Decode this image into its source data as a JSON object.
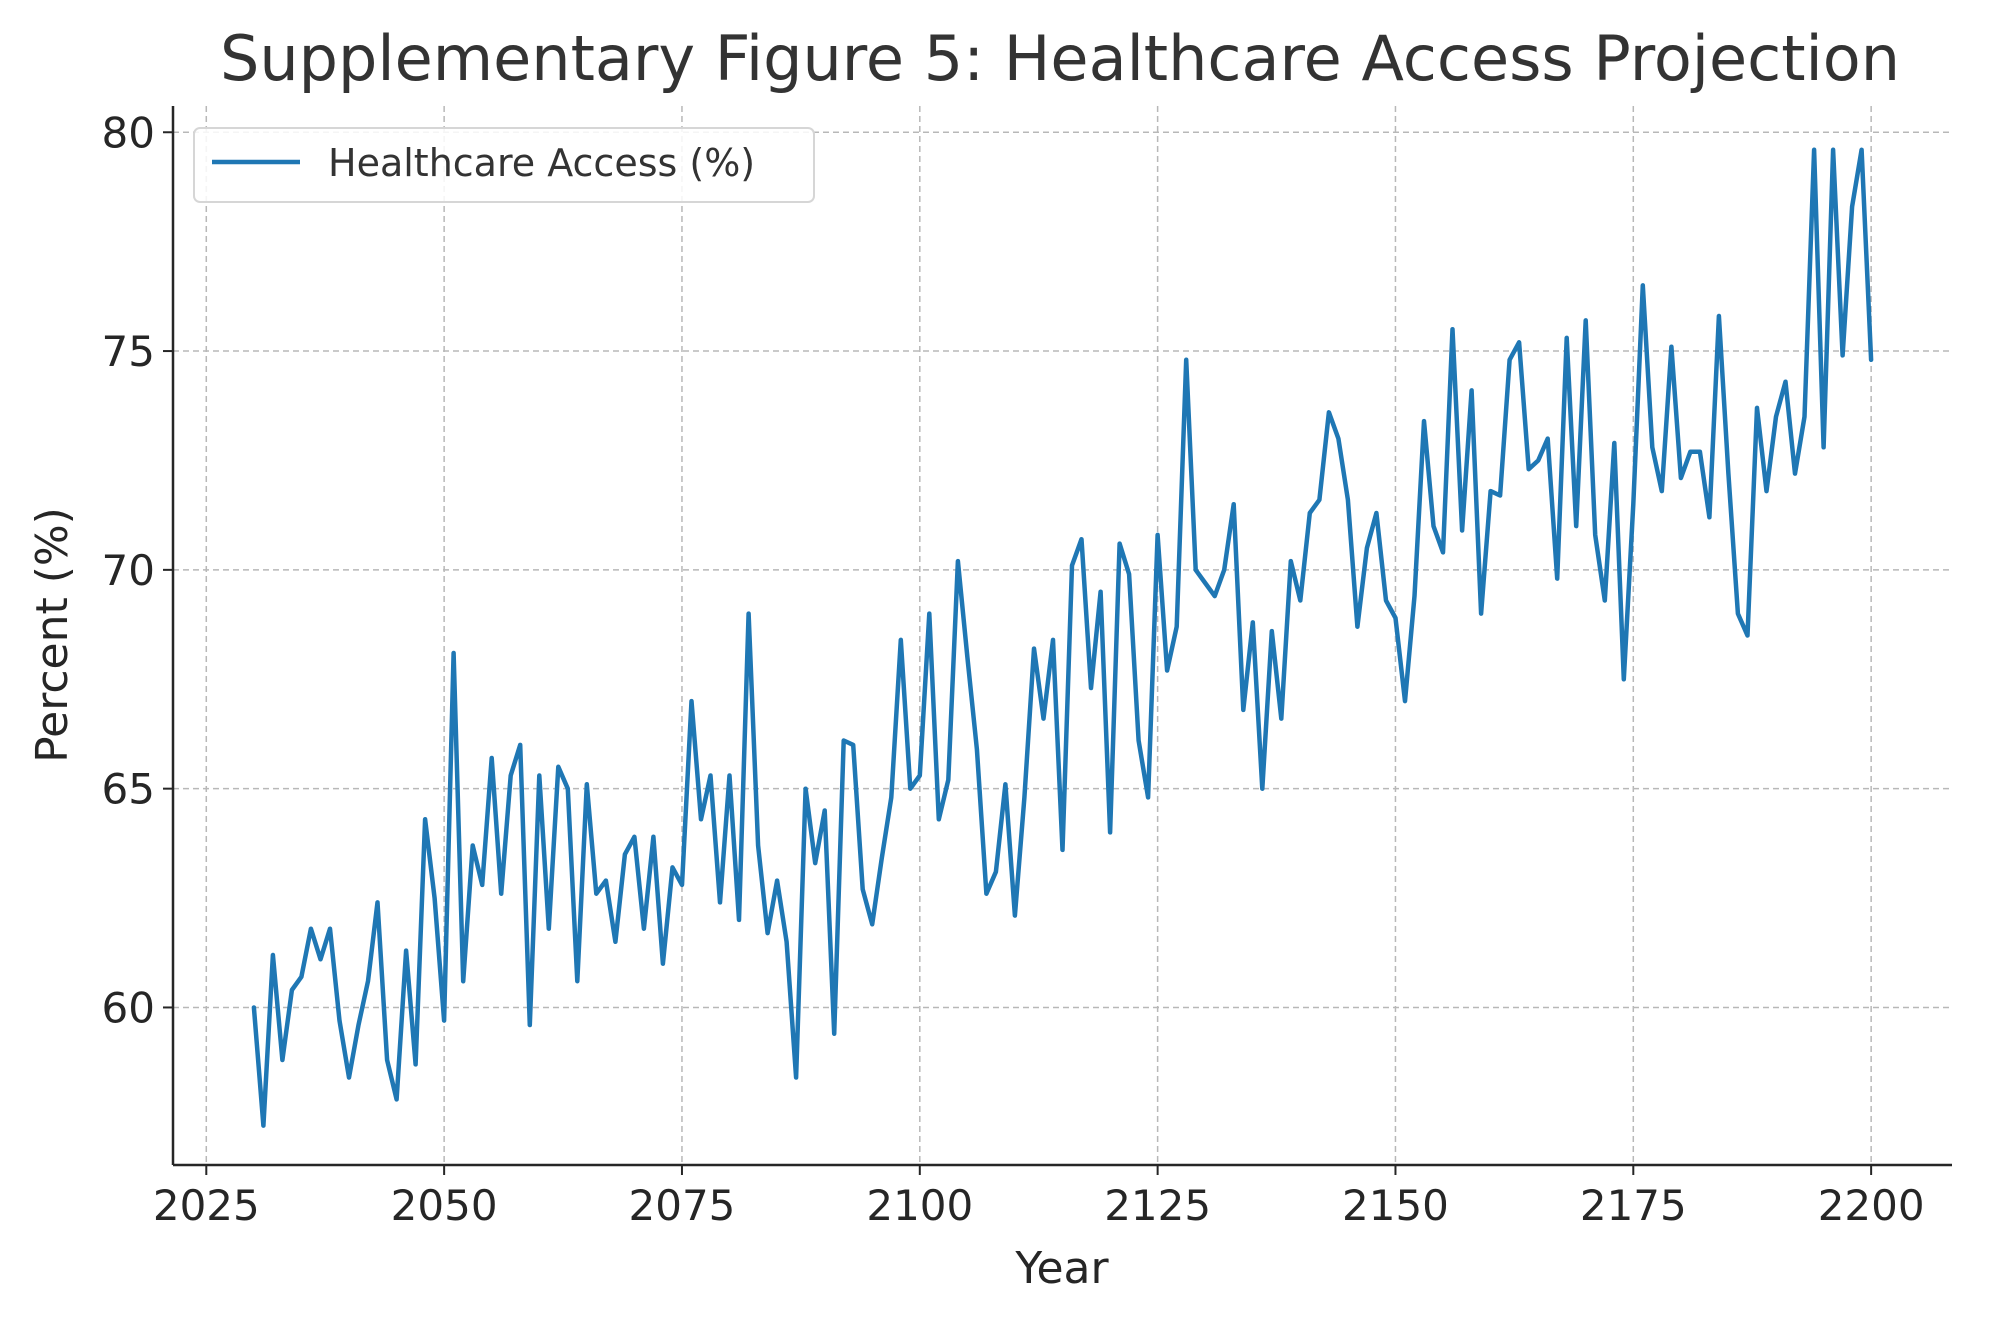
{
  "chart_data": {
    "type": "line",
    "title": "Supplementary Figure 5: Healthcare Access Projection",
    "xlabel": "Year",
    "ylabel": "Percent (%)",
    "xlim": [
      2021.5,
      2208.5
    ],
    "ylim": [
      56.4,
      80.6
    ],
    "xticks": [
      2025,
      2050,
      2075,
      2100,
      2125,
      2150,
      2175,
      2200
    ],
    "yticks": [
      60,
      65,
      70,
      75,
      80
    ],
    "grid": true,
    "legend_position": "top-left",
    "series_color": "#1f77b4",
    "series": [
      {
        "name": "Healthcare Access (%)",
        "x": [
          2030,
          2031,
          2032,
          2033,
          2034,
          2035,
          2036,
          2037,
          2038,
          2039,
          2040,
          2041,
          2042,
          2043,
          2044,
          2045,
          2046,
          2047,
          2048,
          2049,
          2050,
          2051,
          2052,
          2053,
          2054,
          2055,
          2056,
          2057,
          2058,
          2059,
          2060,
          2061,
          2062,
          2063,
          2064,
          2065,
          2066,
          2067,
          2068,
          2069,
          2070,
          2071,
          2072,
          2073,
          2074,
          2075,
          2076,
          2077,
          2078,
          2079,
          2080,
          2081,
          2082,
          2083,
          2084,
          2085,
          2086,
          2087,
          2088,
          2089,
          2090,
          2091,
          2092,
          2093,
          2094,
          2095,
          2096,
          2097,
          2098,
          2099,
          2100,
          2101,
          2102,
          2103,
          2104,
          2105,
          2106,
          2107,
          2108,
          2109,
          2110,
          2111,
          2112,
          2113,
          2114,
          2115,
          2116,
          2117,
          2118,
          2119,
          2120,
          2121,
          2122,
          2123,
          2124,
          2125,
          2126,
          2127,
          2128,
          2129,
          2130,
          2131,
          2132,
          2133,
          2134,
          2135,
          2136,
          2137,
          2138,
          2139,
          2140,
          2141,
          2142,
          2143,
          2144,
          2145,
          2146,
          2147,
          2148,
          2149,
          2150,
          2151,
          2152,
          2153,
          2154,
          2155,
          2156,
          2157,
          2158,
          2159,
          2160,
          2161,
          2162,
          2163,
          2164,
          2165,
          2166,
          2167,
          2168,
          2169,
          2170,
          2171,
          2172,
          2173,
          2174,
          2175,
          2176,
          2177,
          2178,
          2179,
          2180,
          2181,
          2182,
          2183,
          2184,
          2185,
          2186,
          2187,
          2188,
          2189,
          2190,
          2191,
          2192,
          2193,
          2194,
          2195,
          2196,
          2197,
          2198,
          2199,
          2200
        ],
        "y": [
          60.0,
          57.3,
          61.2,
          58.8,
          60.4,
          60.7,
          61.8,
          61.1,
          61.8,
          59.7,
          58.4,
          59.6,
          60.6,
          62.4,
          58.8,
          57.9,
          61.3,
          58.7,
          64.3,
          62.5,
          59.7,
          68.1,
          60.6,
          63.7,
          62.8,
          65.7,
          62.6,
          65.3,
          66.0,
          59.6,
          65.3,
          61.8,
          65.5,
          65.0,
          60.6,
          65.1,
          62.6,
          62.9,
          61.5,
          63.5,
          63.9,
          61.8,
          63.9,
          61.0,
          63.2,
          62.8,
          67.0,
          64.3,
          65.3,
          62.4,
          65.3,
          62.0,
          69.0,
          63.7,
          61.7,
          62.9,
          61.5,
          58.4,
          65.0,
          63.3,
          64.5,
          59.4,
          66.1,
          66.0,
          62.7,
          61.9,
          63.4,
          64.8,
          68.4,
          65.0,
          65.3,
          69.0,
          64.3,
          65.2,
          70.2,
          68.0,
          65.9,
          62.6,
          63.1,
          65.1,
          62.1,
          64.8,
          68.2,
          66.6,
          68.4,
          63.6,
          70.1,
          70.7,
          67.3,
          69.5,
          64.0,
          70.6,
          69.9,
          66.1,
          64.8,
          70.8,
          67.7,
          68.7,
          74.8,
          70.0,
          69.7,
          69.4,
          70.0,
          71.5,
          66.8,
          68.8,
          65.0,
          68.6,
          66.6,
          70.2,
          69.3,
          71.3,
          71.6,
          73.6,
          73.0,
          71.6,
          68.7,
          70.5,
          71.3,
          69.3,
          68.9,
          67.0,
          69.4,
          73.4,
          71.0,
          70.4,
          75.5,
          70.9,
          74.1,
          69.0,
          71.8,
          71.7,
          74.8,
          75.2,
          72.3,
          72.5,
          73.0,
          69.8,
          75.3,
          71.0,
          75.7,
          70.8,
          69.3,
          72.9,
          67.5,
          71.5,
          76.5,
          72.8,
          71.8,
          75.1,
          72.1,
          72.7,
          72.7,
          71.2,
          75.8,
          72.2,
          69.0,
          68.5,
          73.7,
          71.8,
          73.5,
          74.3,
          72.2,
          73.5,
          79.6,
          72.8,
          79.6,
          74.9,
          78.3,
          79.6,
          74.8
        ]
      }
    ]
  }
}
